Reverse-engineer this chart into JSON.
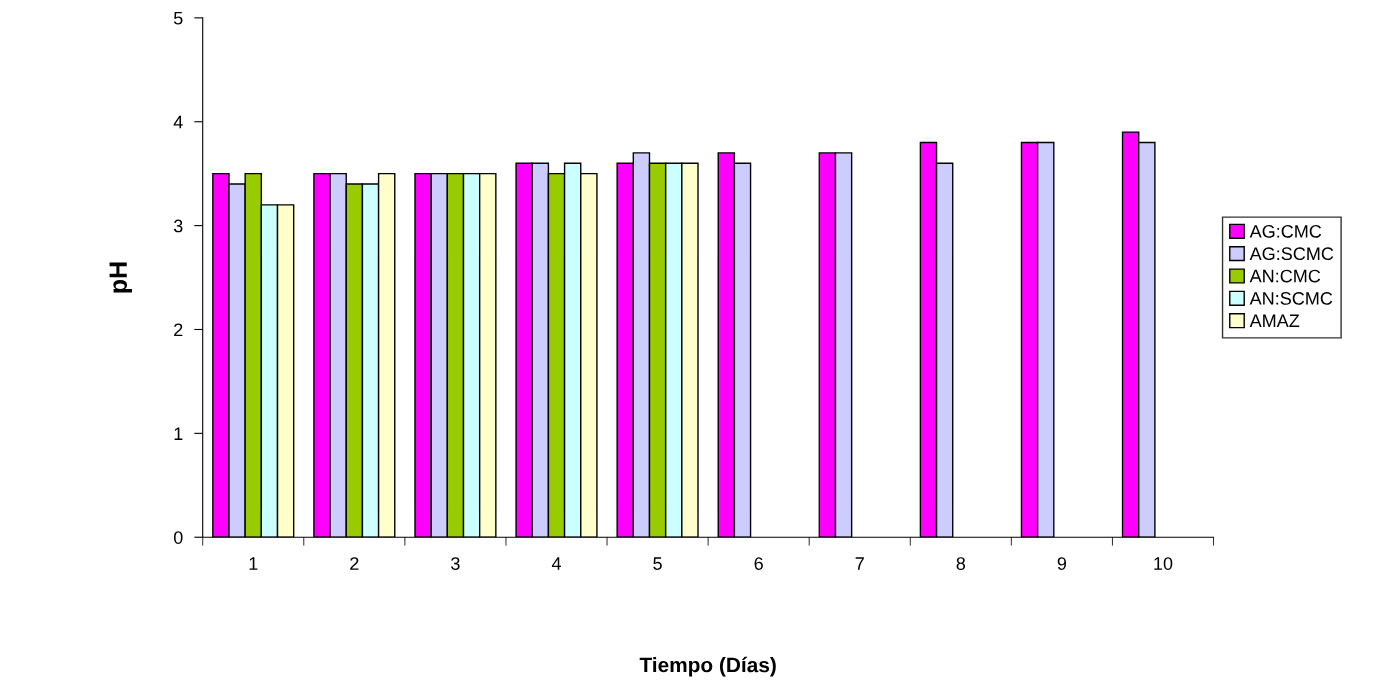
{
  "chart_data": {
    "type": "bar",
    "xlabel": "Tiempo (Días)",
    "ylabel": "pH",
    "categories": [
      "1",
      "2",
      "3",
      "4",
      "5",
      "6",
      "7",
      "8",
      "9",
      "10"
    ],
    "series": [
      {
        "name": "AG:CMC",
        "color": "#ff00ff",
        "values": [
          3.5,
          3.5,
          3.5,
          3.6,
          3.6,
          3.7,
          3.7,
          3.8,
          3.8,
          3.9
        ]
      },
      {
        "name": "AG:SCMC",
        "color": "#ccccff",
        "values": [
          3.4,
          3.5,
          3.5,
          3.6,
          3.7,
          3.6,
          3.7,
          3.6,
          3.8,
          3.8
        ]
      },
      {
        "name": "AN:CMC",
        "color": "#99cc00",
        "values": [
          3.5,
          3.4,
          3.5,
          3.5,
          3.6,
          null,
          null,
          null,
          null,
          null
        ]
      },
      {
        "name": "AN:SCMC",
        "color": "#ccffff",
        "values": [
          3.2,
          3.4,
          3.5,
          3.6,
          3.6,
          null,
          null,
          null,
          null,
          null
        ]
      },
      {
        "name": "AMAZ",
        "color": "#ffffcc",
        "values": [
          3.2,
          3.5,
          3.5,
          3.5,
          3.6,
          null,
          null,
          null,
          null,
          null
        ]
      }
    ],
    "ylim": [
      0,
      5
    ],
    "yticks": [
      0,
      1,
      2,
      3,
      4,
      5
    ],
    "grid": false,
    "legend": "right"
  }
}
